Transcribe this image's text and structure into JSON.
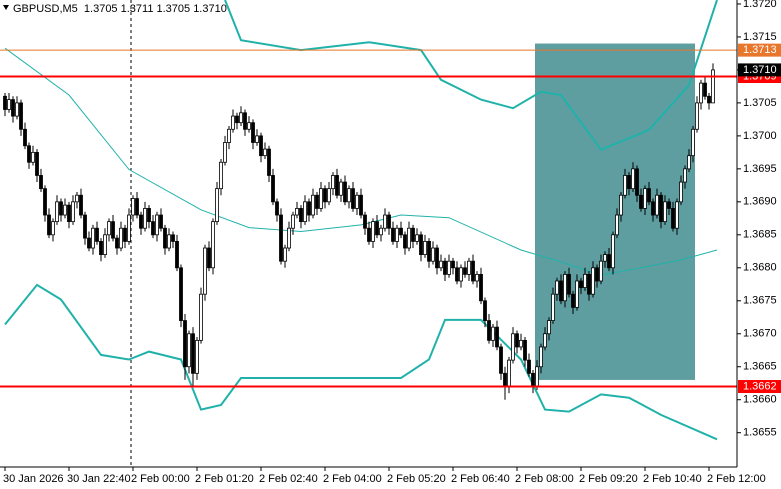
{
  "chart_data": {
    "type": "candlestick",
    "title": "GBPUSD,M5  1.3705 1.3711 1.3705 1.3710",
    "up_color": "#ffffff",
    "down_color": "#000000",
    "xlim": [
      -1.25,
      183
    ],
    "ylim": [
      1.36498,
      1.37206
    ],
    "grid": false,
    "xticks": [
      {
        "value": 0,
        "label": "30 Jan 2026"
      },
      {
        "value": 16,
        "label": "30 Jan 22:40"
      },
      {
        "value": 32,
        "label": "2 Feb 00:00"
      },
      {
        "value": 48,
        "label": "2 Feb 01:20"
      },
      {
        "value": 64,
        "label": "2 Feb 02:40"
      },
      {
        "value": 80,
        "label": "2 Feb 04:00"
      },
      {
        "value": 96,
        "label": "2 Feb 05:20"
      },
      {
        "value": 112,
        "label": "2 Feb 06:40"
      },
      {
        "value": 128,
        "label": "2 Feb 08:00"
      },
      {
        "value": 144,
        "label": "2 Feb 09:20"
      },
      {
        "value": 160,
        "label": "2 Feb 10:40"
      },
      {
        "value": 176,
        "label": "2 Feb 12:00"
      }
    ],
    "yticks": [
      {
        "value": 1.372,
        "label": "1.3720"
      },
      1.3715,
      {
        "value": 1.371,
        "label": "1.3710"
      },
      1.3705,
      {
        "value": 1.37,
        "label": "1.3700"
      },
      1.3695,
      {
        "value": 1.369,
        "label": "1.3690"
      },
      1.3685,
      {
        "value": 1.368,
        "label": "1.3680"
      },
      1.3675,
      {
        "value": 1.367,
        "label": "1.3670"
      },
      1.3665,
      {
        "value": 1.366,
        "label": "1.3660"
      },
      1.3655
    ],
    "box": {
      "x": [
        132.5,
        172.5
      ],
      "y": [
        1.3663,
        1.3714
      ],
      "color": "#5f9ea0"
    },
    "lines": [
      {
        "color": "#20b2aa",
        "width": 2,
        "x": [
          55,
          59,
          74,
          91,
          104,
          109,
          119,
          127,
          134,
          139,
          149,
          161,
          171,
          178
        ],
        "values": [
          1.37206,
          1.37145,
          1.3713,
          1.37142,
          1.3713,
          1.37085,
          1.37055,
          1.37042,
          1.37067,
          1.37062,
          1.36979,
          1.37009,
          1.37077,
          1.37206
        ]
      },
      {
        "color": "#20b2aa",
        "width": 1,
        "x": [
          0,
          16,
          31,
          49,
          61,
          74,
          89,
          99,
          111,
          129,
          139,
          149,
          159,
          169,
          178
        ],
        "values": [
          1.37133,
          1.37062,
          1.36949,
          1.36888,
          1.36861,
          1.36855,
          1.36865,
          1.3688,
          1.36876,
          1.36827,
          1.36809,
          1.36789,
          1.368,
          1.36812,
          1.36827
        ]
      },
      {
        "color": "#20b2aa",
        "width": 2,
        "x": [
          0,
          8,
          14,
          24,
          31,
          36,
          44,
          49,
          54,
          59,
          99,
          106,
          110,
          119,
          124,
          129,
          135,
          141,
          149,
          156,
          164,
          178
        ],
        "values": [
          1.36714,
          1.36774,
          1.36752,
          1.36668,
          1.36661,
          1.36673,
          1.36661,
          1.36585,
          1.36592,
          1.36633,
          1.36633,
          1.36661,
          1.36721,
          1.36721,
          1.36691,
          1.36661,
          1.36585,
          1.36582,
          1.36608,
          1.36603,
          1.36577,
          1.3654
        ]
      }
    ],
    "levels": [
      {
        "value": 1.3713,
        "color": "#e8762b",
        "width": 1
      },
      {
        "value": 1.3709,
        "color": "#ff0000",
        "width": 2
      },
      {
        "value": 1.3662,
        "color": "#ff0000",
        "width": 2
      }
    ],
    "last_price": {
      "value": 1.371,
      "label": "1.3710"
    },
    "candles": [
      [
        1.3706,
        1.37065,
        1.3703,
        1.3704
      ],
      [
        1.3704,
        1.37065,
        1.37035,
        1.37055
      ],
      [
        1.37055,
        1.3706,
        1.3702,
        1.3703
      ],
      [
        1.3703,
        1.3706,
        1.37025,
        1.3705
      ],
      [
        1.3705,
        1.37055,
        1.37,
        1.3701
      ],
      [
        1.3701,
        1.3702,
        1.3698,
        1.36985
      ],
      [
        1.36985,
        1.3699,
        1.3695,
        1.3696
      ],
      [
        1.3696,
        1.36985,
        1.36955,
        1.36975
      ],
      [
        1.36975,
        1.3698,
        1.3693,
        1.3694
      ],
      [
        1.3694,
        1.3695,
        1.36915,
        1.3692
      ],
      [
        1.3692,
        1.36925,
        1.3687,
        1.3688
      ],
      [
        1.3688,
        1.3689,
        1.36845,
        1.3685
      ],
      [
        1.3685,
        1.36875,
        1.3684,
        1.3687
      ],
      [
        1.3687,
        1.3691,
        1.36865,
        1.369
      ],
      [
        1.369,
        1.36905,
        1.3687,
        1.3688
      ],
      [
        1.3688,
        1.36905,
        1.36875,
        1.36895
      ],
      [
        1.36895,
        1.369,
        1.3686,
        1.3687
      ],
      [
        1.3687,
        1.3691,
        1.36865,
        1.369
      ],
      [
        1.369,
        1.36915,
        1.3689,
        1.3691
      ],
      [
        1.3691,
        1.3692,
        1.36875,
        1.3688
      ],
      [
        1.3688,
        1.36885,
        1.36835,
        1.36845
      ],
      [
        1.36845,
        1.36855,
        1.36825,
        1.3683
      ],
      [
        1.3683,
        1.36865,
        1.3682,
        1.3686
      ],
      [
        1.3686,
        1.3687,
        1.36835,
        1.3684
      ],
      [
        1.3684,
        1.36845,
        1.3681,
        1.3682
      ],
      [
        1.3682,
        1.3686,
        1.36815,
        1.3685
      ],
      [
        1.3685,
        1.36875,
        1.3684,
        1.3687
      ],
      [
        1.3687,
        1.3688,
        1.3684,
        1.36845
      ],
      [
        1.36845,
        1.3685,
        1.3682,
        1.3683
      ],
      [
        1.3683,
        1.3687,
        1.36825,
        1.3686
      ],
      [
        1.3686,
        1.36865,
        1.3683,
        1.3684
      ],
      [
        1.3684,
        1.3689,
        1.36835,
        1.3688
      ],
      [
        1.3688,
        1.3691,
        1.3687,
        1.36905
      ],
      [
        1.36905,
        1.36915,
        1.36875,
        1.3688
      ],
      [
        1.3688,
        1.36885,
        1.3685,
        1.3686
      ],
      [
        1.3686,
        1.369,
        1.36855,
        1.3689
      ],
      [
        1.3689,
        1.36895,
        1.3686,
        1.3687
      ],
      [
        1.3687,
        1.3688,
        1.36845,
        1.3685
      ],
      [
        1.3685,
        1.36885,
        1.3684,
        1.3688
      ],
      [
        1.3688,
        1.3689,
        1.36855,
        1.3686
      ],
      [
        1.3686,
        1.36865,
        1.3682,
        1.3683
      ],
      [
        1.3683,
        1.3686,
        1.36825,
        1.3685
      ],
      [
        1.3685,
        1.36855,
        1.3683,
        1.3684
      ],
      [
        1.3684,
        1.3685,
        1.36795,
        1.368
      ],
      [
        1.368,
        1.36805,
        1.3671,
        1.3672
      ],
      [
        1.3672,
        1.3673,
        1.3663,
        1.3665
      ],
      [
        1.3665,
        1.36705,
        1.3664,
        1.367
      ],
      [
        1.367,
        1.3671,
        1.3662,
        1.3664
      ],
      [
        1.3664,
        1.36695,
        1.3663,
        1.3669
      ],
      [
        1.3669,
        1.3677,
        1.36685,
        1.3676
      ],
      [
        1.3676,
        1.36835,
        1.3675,
        1.3683
      ],
      [
        1.3683,
        1.3684,
        1.36795,
        1.368
      ],
      [
        1.368,
        1.36875,
        1.3679,
        1.3687
      ],
      [
        1.3687,
        1.3693,
        1.36865,
        1.3692
      ],
      [
        1.3692,
        1.36965,
        1.3691,
        1.3696
      ],
      [
        1.3696,
        1.37,
        1.36955,
        1.3699
      ],
      [
        1.3699,
        1.37015,
        1.3698,
        1.3701
      ],
      [
        1.3701,
        1.3704,
        1.37005,
        1.3703
      ],
      [
        1.3703,
        1.37035,
        1.3701,
        1.3702
      ],
      [
        1.3702,
        1.37045,
        1.37015,
        1.37035
      ],
      [
        1.37035,
        1.3704,
        1.37,
        1.3701
      ],
      [
        1.3701,
        1.3703,
        1.37005,
        1.3702
      ],
      [
        1.3702,
        1.37025,
        1.3698,
        1.3699
      ],
      [
        1.3699,
        1.3701,
        1.36985,
        1.37
      ],
      [
        1.37,
        1.37005,
        1.3696,
        1.3697
      ],
      [
        1.3697,
        1.3699,
        1.36965,
        1.3698
      ],
      [
        1.3698,
        1.36985,
        1.3693,
        1.3694
      ],
      [
        1.3694,
        1.3695,
        1.36895,
        1.369
      ],
      [
        1.369,
        1.36905,
        1.3687,
        1.3688
      ],
      [
        1.3688,
        1.3689,
        1.36805,
        1.3681
      ],
      [
        1.3681,
        1.36835,
        1.368,
        1.3683
      ],
      [
        1.3683,
        1.3687,
        1.36825,
        1.3686
      ],
      [
        1.3686,
        1.36885,
        1.3685,
        1.3688
      ],
      [
        1.3688,
        1.369,
        1.36875,
        1.3689
      ],
      [
        1.3689,
        1.36895,
        1.3686,
        1.3687
      ],
      [
        1.3687,
        1.3691,
        1.36865,
        1.369
      ],
      [
        1.369,
        1.36905,
        1.3687,
        1.3688
      ],
      [
        1.3688,
        1.3692,
        1.36875,
        1.3691
      ],
      [
        1.3691,
        1.36915,
        1.3688,
        1.3689
      ],
      [
        1.3689,
        1.3693,
        1.36885,
        1.3692
      ],
      [
        1.3692,
        1.36925,
        1.3689,
        1.369
      ],
      [
        1.369,
        1.3693,
        1.36895,
        1.3692
      ],
      [
        1.3692,
        1.36945,
        1.3691,
        1.3694
      ],
      [
        1.3694,
        1.3695,
        1.36905,
        1.3691
      ],
      [
        1.3691,
        1.36935,
        1.369,
        1.3693
      ],
      [
        1.3693,
        1.3694,
        1.36895,
        1.369
      ],
      [
        1.369,
        1.36925,
        1.3689,
        1.3692
      ],
      [
        1.3692,
        1.3693,
        1.36885,
        1.3689
      ],
      [
        1.3689,
        1.36915,
        1.3688,
        1.3691
      ],
      [
        1.3691,
        1.3692,
        1.36875,
        1.3688
      ],
      [
        1.3688,
        1.36885,
        1.3685,
        1.3686
      ],
      [
        1.3686,
        1.3687,
        1.36835,
        1.3684
      ],
      [
        1.3684,
        1.36875,
        1.3683,
        1.3687
      ],
      [
        1.3687,
        1.3688,
        1.36845,
        1.3685
      ],
      [
        1.3685,
        1.36865,
        1.3684,
        1.3686
      ],
      [
        1.3686,
        1.3689,
        1.36855,
        1.3688
      ],
      [
        1.3688,
        1.36885,
        1.3685,
        1.3686
      ],
      [
        1.3686,
        1.3687,
        1.36835,
        1.3684
      ],
      [
        1.3684,
        1.36865,
        1.3683,
        1.3686
      ],
      [
        1.3686,
        1.3687,
        1.36845,
        1.3685
      ],
      [
        1.3685,
        1.36855,
        1.3682,
        1.3683
      ],
      [
        1.3683,
        1.3687,
        1.36825,
        1.3686
      ],
      [
        1.3686,
        1.36865,
        1.3683,
        1.3684
      ],
      [
        1.3684,
        1.3686,
        1.36835,
        1.3685
      ],
      [
        1.3685,
        1.36855,
        1.3681,
        1.3682
      ],
      [
        1.3682,
        1.3685,
        1.36815,
        1.3684
      ],
      [
        1.3684,
        1.36845,
        1.368,
        1.3681
      ],
      [
        1.3681,
        1.3684,
        1.36805,
        1.3683
      ],
      [
        1.3683,
        1.36835,
        1.3679,
        1.368
      ],
      [
        1.368,
        1.3682,
        1.36795,
        1.3681
      ],
      [
        1.3681,
        1.36815,
        1.3678,
        1.3679
      ],
      [
        1.3679,
        1.3682,
        1.36785,
        1.3681
      ],
      [
        1.3681,
        1.36815,
        1.3679,
        1.368
      ],
      [
        1.368,
        1.3681,
        1.36775,
        1.3678
      ],
      [
        1.3678,
        1.36805,
        1.3677,
        1.368
      ],
      [
        1.368,
        1.3681,
        1.36785,
        1.3679
      ],
      [
        1.3679,
        1.36815,
        1.3678,
        1.3681
      ],
      [
        1.3681,
        1.3682,
        1.36775,
        1.3678
      ],
      [
        1.3678,
        1.36795,
        1.3677,
        1.3679
      ],
      [
        1.3679,
        1.368,
        1.36745,
        1.3675
      ],
      [
        1.3675,
        1.36755,
        1.3671,
        1.3672
      ],
      [
        1.3672,
        1.3673,
        1.36685,
        1.3669
      ],
      [
        1.3669,
        1.36715,
        1.3668,
        1.3671
      ],
      [
        1.3671,
        1.3672,
        1.36675,
        1.3668
      ],
      [
        1.3668,
        1.36685,
        1.3663,
        1.3664
      ],
      [
        1.3664,
        1.3665,
        1.366,
        1.3662
      ],
      [
        1.3662,
        1.36665,
        1.3661,
        1.3666
      ],
      [
        1.3666,
        1.3671,
        1.36655,
        1.367
      ],
      [
        1.367,
        1.36705,
        1.3667,
        1.3668
      ],
      [
        1.3668,
        1.367,
        1.36675,
        1.3669
      ],
      [
        1.3669,
        1.36695,
        1.3665,
        1.3666
      ],
      [
        1.3666,
        1.3667,
        1.36635,
        1.3664
      ],
      [
        1.3664,
        1.36645,
        1.3661,
        1.3662
      ],
      [
        1.3662,
        1.3666,
        1.36615,
        1.3665
      ],
      [
        1.3665,
        1.36685,
        1.3664,
        1.3668
      ],
      [
        1.3668,
        1.3671,
        1.36675,
        1.367
      ],
      [
        1.367,
        1.36725,
        1.3669,
        1.3672
      ],
      [
        1.3672,
        1.3677,
        1.36715,
        1.3676
      ],
      [
        1.3676,
        1.36785,
        1.3675,
        1.3678
      ],
      [
        1.3678,
        1.3679,
        1.36745,
        1.3675
      ],
      [
        1.3675,
        1.36795,
        1.3674,
        1.3679
      ],
      [
        1.3679,
        1.368,
        1.36755,
        1.3676
      ],
      [
        1.3676,
        1.36765,
        1.3673,
        1.3674
      ],
      [
        1.3674,
        1.3679,
        1.36735,
        1.3678
      ],
      [
        1.3678,
        1.36785,
        1.3676,
        1.3677
      ],
      [
        1.3677,
        1.368,
        1.36765,
        1.3679
      ],
      [
        1.3679,
        1.36795,
        1.3675,
        1.3676
      ],
      [
        1.3676,
        1.3681,
        1.36755,
        1.368
      ],
      [
        1.368,
        1.36805,
        1.3677,
        1.3678
      ],
      [
        1.3678,
        1.3682,
        1.36775,
        1.3681
      ],
      [
        1.3681,
        1.36825,
        1.368,
        1.3682
      ],
      [
        1.3682,
        1.3683,
        1.36795,
        1.368
      ],
      [
        1.368,
        1.36855,
        1.3679,
        1.3685
      ],
      [
        1.3685,
        1.3689,
        1.36845,
        1.3688
      ],
      [
        1.3688,
        1.36915,
        1.3687,
        1.3691
      ],
      [
        1.3691,
        1.3695,
        1.36905,
        1.3694
      ],
      [
        1.3694,
        1.36945,
        1.3691,
        1.3692
      ],
      [
        1.3692,
        1.3696,
        1.36915,
        1.3695
      ],
      [
        1.3695,
        1.36955,
        1.369,
        1.3691
      ],
      [
        1.3691,
        1.3692,
        1.36885,
        1.3689
      ],
      [
        1.3689,
        1.36925,
        1.3688,
        1.3692
      ],
      [
        1.3692,
        1.3693,
        1.36895,
        1.369
      ],
      [
        1.369,
        1.36905,
        1.3687,
        1.3688
      ],
      [
        1.3688,
        1.3692,
        1.36875,
        1.3691
      ],
      [
        1.3691,
        1.36915,
        1.3686,
        1.3687
      ],
      [
        1.3687,
        1.3691,
        1.36865,
        1.369
      ],
      [
        1.369,
        1.36905,
        1.3688,
        1.3689
      ],
      [
        1.3689,
        1.369,
        1.36855,
        1.3686
      ],
      [
        1.3686,
        1.36905,
        1.3685,
        1.369
      ],
      [
        1.369,
        1.3694,
        1.36895,
        1.3693
      ],
      [
        1.3693,
        1.36955,
        1.3692,
        1.3695
      ],
      [
        1.3695,
        1.3698,
        1.36945,
        1.3697
      ],
      [
        1.3697,
        1.37015,
        1.3696,
        1.3701
      ],
      [
        1.3701,
        1.3706,
        1.37005,
        1.3705
      ],
      [
        1.3705,
        1.37085,
        1.3704,
        1.3708
      ],
      [
        1.3708,
        1.3709,
        1.37055,
        1.3706
      ],
      [
        1.3706,
        1.37065,
        1.3704,
        1.3705
      ],
      [
        1.3705,
        1.3711,
        1.3705,
        1.371
      ]
    ]
  }
}
